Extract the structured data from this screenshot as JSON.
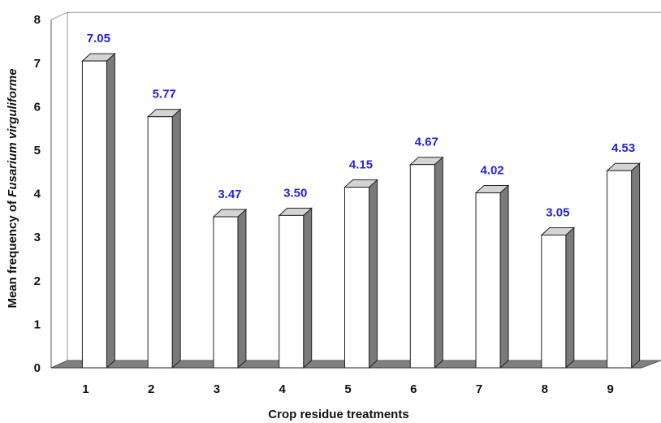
{
  "chart_data": {
    "type": "bar",
    "style": "3d",
    "categories": [
      "1",
      "2",
      "3",
      "4",
      "5",
      "6",
      "7",
      "8",
      "9"
    ],
    "values": [
      7.05,
      5.77,
      3.47,
      3.5,
      4.15,
      4.67,
      4.02,
      3.05,
      4.53
    ],
    "data_labels": [
      "7.05",
      "5.77",
      "3.47",
      "3.50",
      "4.15",
      "4.67",
      "4.02",
      "3.05",
      "4.53"
    ],
    "title": "",
    "xlabel": "Crop residue treatments",
    "ylabel_prefix": "Mean frequency of ",
    "ylabel_italic": "Fusarium virguliforme",
    "ylim": [
      0,
      8
    ],
    "yticks": [
      "0",
      "1",
      "2",
      "3",
      "4",
      "5",
      "6",
      "7",
      "8"
    ],
    "grid": false,
    "legend": "none",
    "colors": {
      "bar_front": "#ffffff",
      "bar_side": "#7a7a7a",
      "bar_top": "#d4d4d4",
      "floor": "#808080",
      "data_label": "#2323d8",
      "wall_line": "#9a9a9a"
    }
  }
}
